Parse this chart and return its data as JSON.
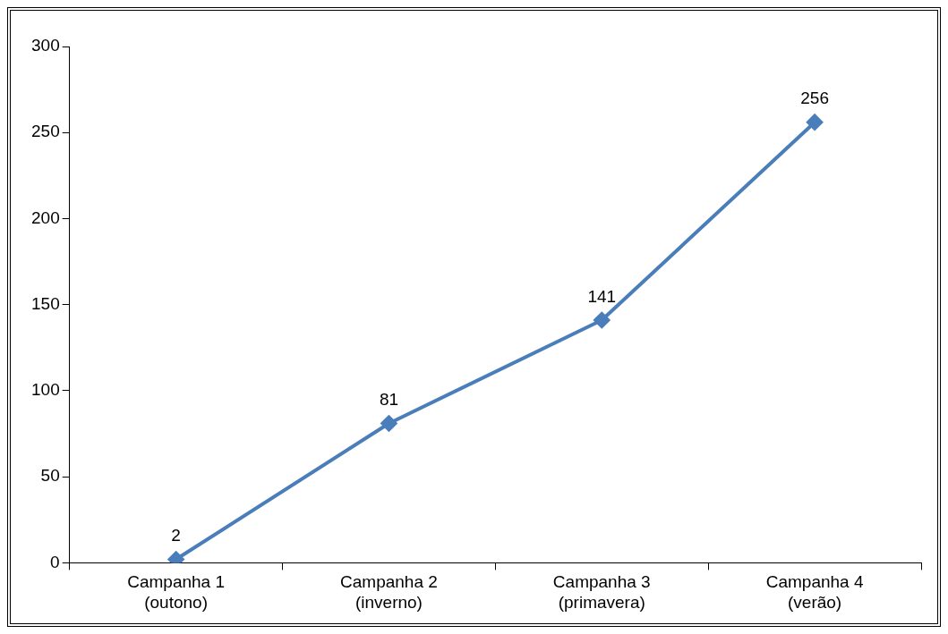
{
  "chart_data": {
    "type": "line",
    "categories": [
      "Campanha 1\n(outono)",
      "Campanha 2\n(inverno)",
      "Campanha 3\n(primavera)",
      "Campanha 4\n(verão)"
    ],
    "series": [
      {
        "color": "#4a7ebb",
        "values": [
          2,
          81,
          141,
          256
        ]
      }
    ],
    "ylim": [
      0,
      300
    ],
    "yticks": [
      0,
      50,
      100,
      150,
      200,
      250,
      300
    ],
    "marker": "diamond",
    "line_style": "solid",
    "data_labels": true
  }
}
